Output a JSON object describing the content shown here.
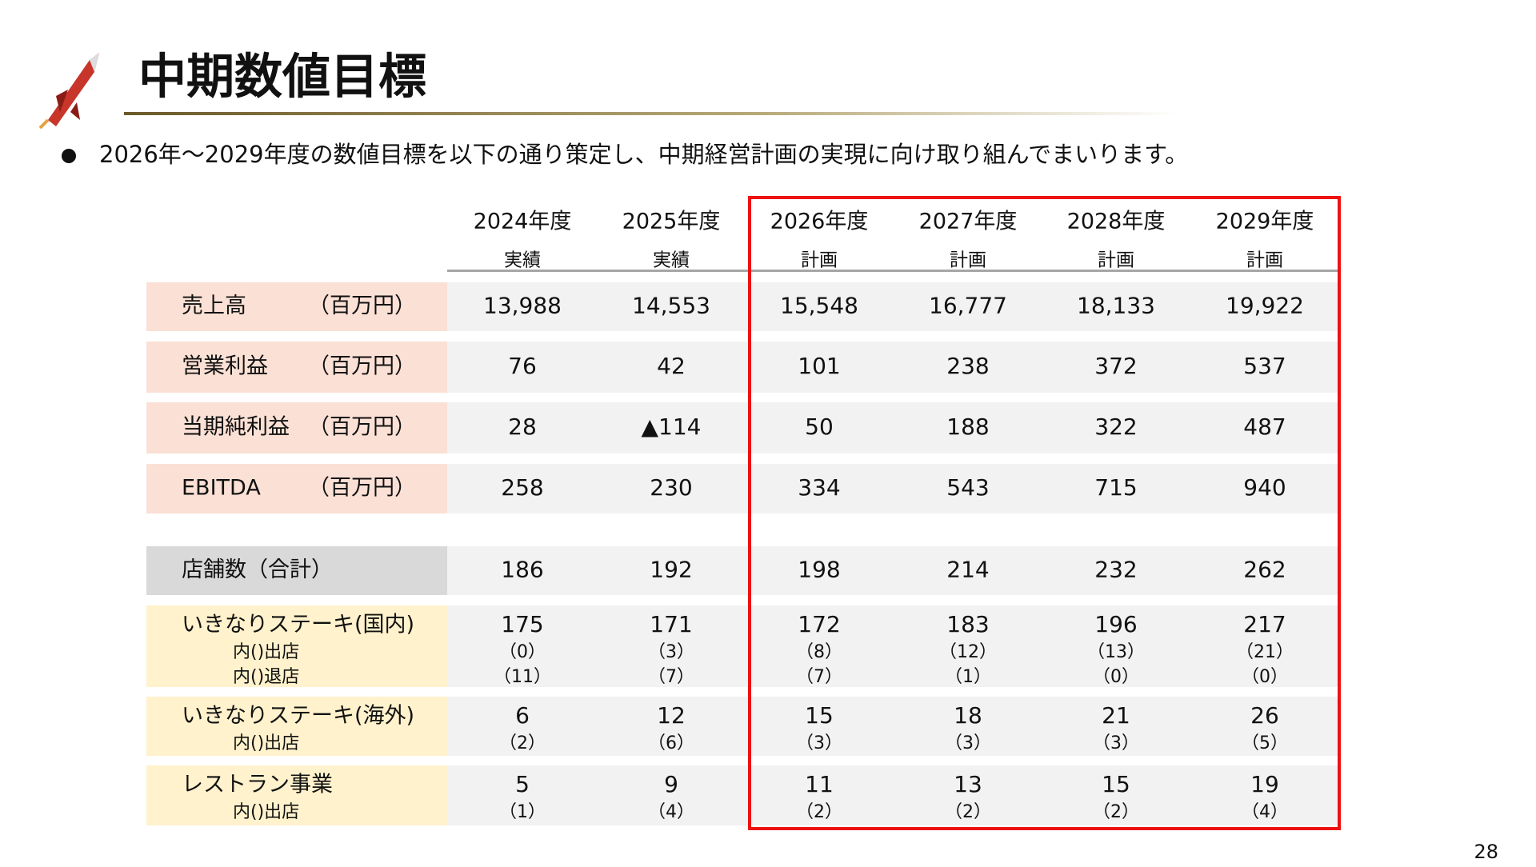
{
  "header": {
    "title": "中期数値目標",
    "bullet": "2026年～2029年度の数値目標を以下の通り策定し、中期経営計画の実現に向け取り組んでまいります。"
  },
  "table": {
    "columns": [
      {
        "year": "2024年度",
        "kind": "実績"
      },
      {
        "year": "2025年度",
        "kind": "実績"
      },
      {
        "year": "2026年度",
        "kind": "計画"
      },
      {
        "year": "2027年度",
        "kind": "計画"
      },
      {
        "year": "2028年度",
        "kind": "計画"
      },
      {
        "year": "2029年度",
        "kind": "計画"
      }
    ],
    "rows": [
      {
        "label": "売上高",
        "unit": "（百万円）",
        "values": [
          "13,988",
          "14,553",
          "15,548",
          "16,777",
          "18,133",
          "19,922"
        ]
      },
      {
        "label": "営業利益",
        "unit": "（百万円）",
        "values": [
          "76",
          "42",
          "101",
          "238",
          "372",
          "537"
        ]
      },
      {
        "label": "当期純利益",
        "unit": "（百万円）",
        "values": [
          "28",
          "▲114",
          "50",
          "188",
          "322",
          "487"
        ]
      },
      {
        "label": "EBITDA",
        "unit": "（百万円）",
        "values": [
          "258",
          "230",
          "334",
          "543",
          "715",
          "940"
        ]
      },
      {
        "label": "店舗数（合計）",
        "values": [
          "186",
          "192",
          "198",
          "214",
          "232",
          "262"
        ]
      },
      {
        "label": "いきなりステーキ(国内)",
        "values": [
          "175",
          "171",
          "172",
          "183",
          "196",
          "217"
        ],
        "sub": [
          {
            "label": "内()出店",
            "values": [
              "（0）",
              "（3）",
              "（8）",
              "（12）",
              "（13）",
              "（21）"
            ]
          },
          {
            "label": "内()退店",
            "values": [
              "（11）",
              "（7）",
              "（7）",
              "（1）",
              "（0）",
              "（0）"
            ]
          }
        ]
      },
      {
        "label": "いきなりステーキ(海外)",
        "values": [
          "6",
          "12",
          "15",
          "18",
          "21",
          "26"
        ],
        "sub": [
          {
            "label": "内()出店",
            "values": [
              "（2）",
              "（6）",
              "（3）",
              "（3）",
              "（3）",
              "（5）"
            ]
          }
        ]
      },
      {
        "label": "レストラン事業",
        "values": [
          "5",
          "9",
          "11",
          "13",
          "15",
          "19"
        ],
        "sub": [
          {
            "label": "内()出店",
            "values": [
              "（1）",
              "（4）",
              "（2）",
              "（2）",
              "（2）",
              "（4）"
            ]
          }
        ]
      }
    ]
  },
  "footer": {
    "page": "28"
  }
}
